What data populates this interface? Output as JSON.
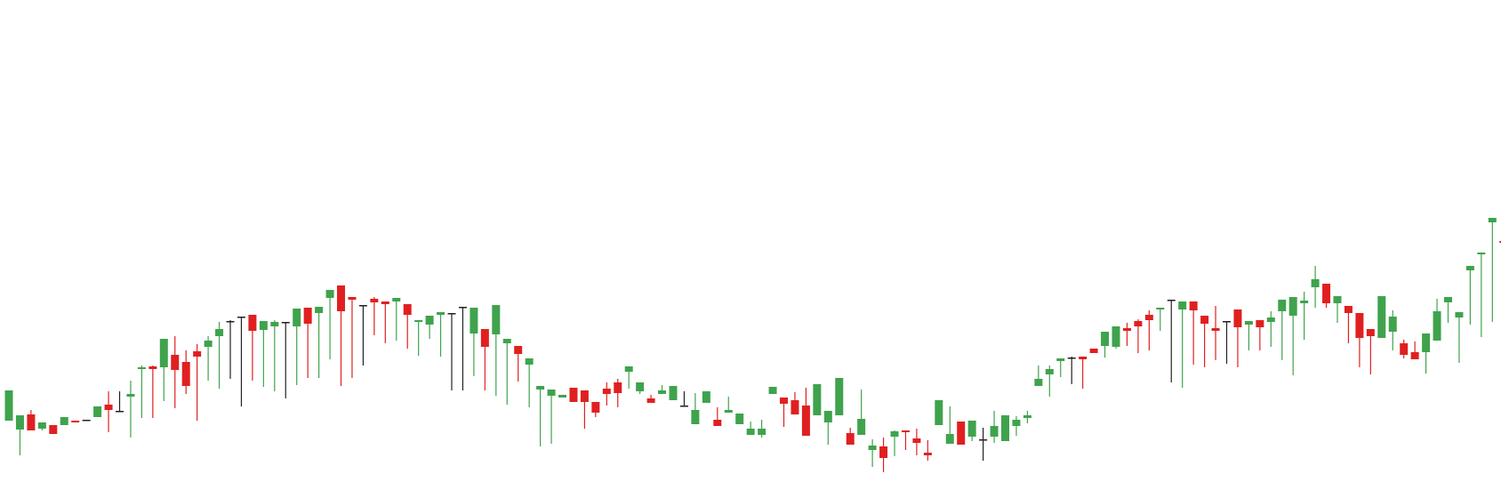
{
  "colors": {
    "up": "#3fa34d",
    "down": "#e02020",
    "doji": "#222222",
    "background": "#ffffff"
  },
  "chart_data": {
    "type": "candlestick",
    "title": "",
    "xlabel": "",
    "ylabel": "",
    "grid": false,
    "legend": "none",
    "ylim": [
      0,
      542
    ],
    "candles": [
      [
        69,
        103,
        59,
        78
      ],
      [
        59,
        75,
        75,
        30
      ],
      [
        76,
        58,
        81,
        58
      ],
      [
        60,
        67,
        51,
        58
      ],
      [
        64,
        54,
        53,
        74
      ],
      [
        64,
        73,
        53,
        75
      ],
      [
        69,
        67,
        63,
        84
      ],
      [
        70,
        69,
        63,
        76
      ],
      [
        73,
        85,
        70,
        131
      ],
      [
        87,
        81,
        102,
        56
      ],
      [
        80,
        79,
        102,
        80
      ],
      [
        96,
        99,
        114,
        50
      ],
      [
        127,
        129,
        131,
        72
      ],
      [
        130,
        127,
        131,
        72
      ],
      [
        129,
        161,
        149,
        91
      ],
      [
        143,
        126,
        164,
        83
      ],
      [
        135,
        108,
        148,
        99
      ],
      [
        147,
        141,
        155,
        69
      ],
      [
        152,
        159,
        164,
        114
      ],
      [
        164,
        172,
        180,
        105
      ],
      [
        180,
        181,
        182,
        116
      ],
      [
        186,
        186,
        157,
        85
      ],
      [
        188,
        170,
        167,
        114
      ],
      [
        171,
        181,
        168,
        107
      ],
      [
        175,
        180,
        182,
        102
      ],
      [
        179,
        180,
        179,
        94
      ],
      [
        175,
        195,
        181,
        109
      ],
      [
        196,
        178,
        175,
        117
      ],
      [
        190,
        197,
        162,
        117
      ],
      [
        207,
        216,
        210,
        138
      ],
      [
        221,
        192,
        193,
        108
      ],
      [
        208,
        205,
        202,
        117
      ],
      [
        198,
        199,
        175,
        131
      ],
      [
        206,
        202,
        208,
        165
      ],
      [
        203,
        200,
        195,
        156
      ],
      [
        203,
        207,
        192,
        159
      ],
      [
        200,
        188,
        182,
        150
      ],
      [
        180,
        182,
        176,
        142
      ],
      [
        177,
        187,
        172,
        161
      ],
      [
        188,
        191,
        182,
        141
      ],
      [
        189,
        190,
        154,
        103
      ],
      [
        197,
        196,
        154,
        103
      ],
      [
        167,
        196,
        159,
        119
      ],
      [
        172,
        152,
        152,
        103
      ],
      [
        166,
        199,
        169,
        97
      ],
      [
        156,
        161,
        159,
        87
      ],
      [
        153,
        144,
        134,
        113
      ],
      [
        132,
        139,
        113,
        84
      ],
      [
        104,
        108,
        106,
        40
      ],
      [
        97,
        104,
        103,
        43
      ],
      [
        95,
        98,
        94,
        99
      ],
      [
        106,
        90,
        87,
        95
      ],
      [
        103,
        90,
        96,
        60
      ],
      [
        90,
        78,
        90,
        73
      ],
      [
        105,
        99,
        112,
        86
      ],
      [
        112,
        100,
        116,
        84
      ],
      [
        124,
        130,
        123,
        105
      ],
      [
        102,
        112,
        98,
        99
      ],
      [
        94,
        89,
        98,
        101
      ],
      [
        99,
        103,
        109,
        109
      ],
      [
        92,
        108,
        89,
        102
      ],
      [
        86,
        85,
        102,
        100
      ],
      [
        65,
        81,
        100,
        134
      ],
      [
        89,
        102,
        98,
        96
      ],
      [
        70,
        63,
        84,
        94
      ],
      [
        78,
        81,
        96,
        115
      ],
      [
        65,
        77,
        67,
        87
      ],
      [
        53,
        60,
        68,
        62
      ],
      [
        53,
        60,
        70,
        50
      ],
      [
        99,
        107,
        104,
        99
      ],
      [
        95,
        88,
        90,
        62
      ],
      [
        92,
        76,
        101,
        91
      ],
      [
        86,
        52,
        106,
        76
      ],
      [
        75,
        110,
        89,
        91
      ],
      [
        67,
        80,
        68,
        42
      ],
      [
        75,
        117,
        99,
        97
      ],
      [
        55,
        42,
        61,
        88
      ],
      [
        53,
        71,
        104,
        76
      ],
      [
        36,
        41,
        48,
        17
      ],
      [
        40,
        27,
        50,
        11
      ],
      [
        51,
        57,
        58,
        29
      ],
      [
        58,
        56,
        50,
        36
      ],
      [
        49,
        44,
        60,
        30
      ],
      [
        33,
        30,
        47,
        24
      ],
      [
        64,
        92,
        38,
        64
      ],
      [
        43,
        54,
        85,
        57
      ],
      [
        68,
        42,
        65,
        49
      ],
      [
        51,
        69,
        62,
        46
      ],
      [
        47,
        48,
        61,
        24
      ],
      [
        51,
        63,
        80,
        44
      ],
      [
        46,
        75,
        75,
        70
      ],
      [
        63,
        70,
        74,
        52
      ],
      [
        72,
        75,
        80,
        66
      ],
      [
        108,
        116,
        131,
        121
      ],
      [
        121,
        127,
        131,
        96
      ],
      [
        136,
        139,
        138,
        118
      ],
      [
        140,
        139,
        141,
        110
      ],
      [
        141,
        138,
        128,
        105
      ],
      [
        150,
        145,
        131,
        145
      ],
      [
        153,
        169,
        140,
        140
      ],
      [
        152,
        175,
        171,
        150
      ],
      [
        173,
        170,
        179,
        153
      ],
      [
        181,
        175,
        183,
        145
      ],
      [
        188,
        182,
        193,
        148
      ],
      [
        194,
        196,
        182,
        170
      ],
      [
        204,
        205,
        165,
        112
      ],
      [
        194,
        203,
        190,
        106
      ],
      [
        203,
        193,
        187,
        132
      ],
      [
        187,
        178,
        152,
        129
      ],
      [
        173,
        170,
        198,
        137
      ],
      [
        181,
        181,
        174,
        133
      ],
      [
        194,
        174,
        185,
        129
      ],
      [
        177,
        181,
        166,
        148
      ],
      [
        182,
        174,
        178,
        148
      ],
      [
        180,
        185,
        192,
        152
      ],
      [
        192,
        205,
        185,
        137
      ],
      [
        187,
        208,
        197,
        120
      ],
      [
        201,
        204,
        214,
        160
      ],
      [
        219,
        228,
        243,
        196
      ],
      [
        223,
        201,
        201,
        196
      ],
      [
        201,
        209,
        206,
        179
      ],
      [
        198,
        190,
        191,
        156
      ],
      [
        190,
        162,
        168,
        129
      ],
      [
        172,
        164,
        167,
        121
      ],
      [
        162,
        209,
        206,
        177
      ],
      [
        169,
        186,
        193,
        148
      ],
      [
        156,
        143,
        160,
        139
      ],
      [
        146,
        138,
        158,
        153
      ],
      [
        146,
        167,
        165,
        122
      ],
      [
        159,
        192,
        206,
        162
      ],
      [
        202,
        208,
        202,
        179
      ],
      [
        185,
        191,
        190,
        134
      ],
      [
        238,
        243,
        221,
        177
      ],
      [
        256,
        258,
        246,
        163
      ],
      [
        292,
        297,
        289,
        180
      ],
      [
        271,
        269,
        311,
        256
      ],
      [
        252,
        255,
        268,
        262
      ]
    ]
  }
}
